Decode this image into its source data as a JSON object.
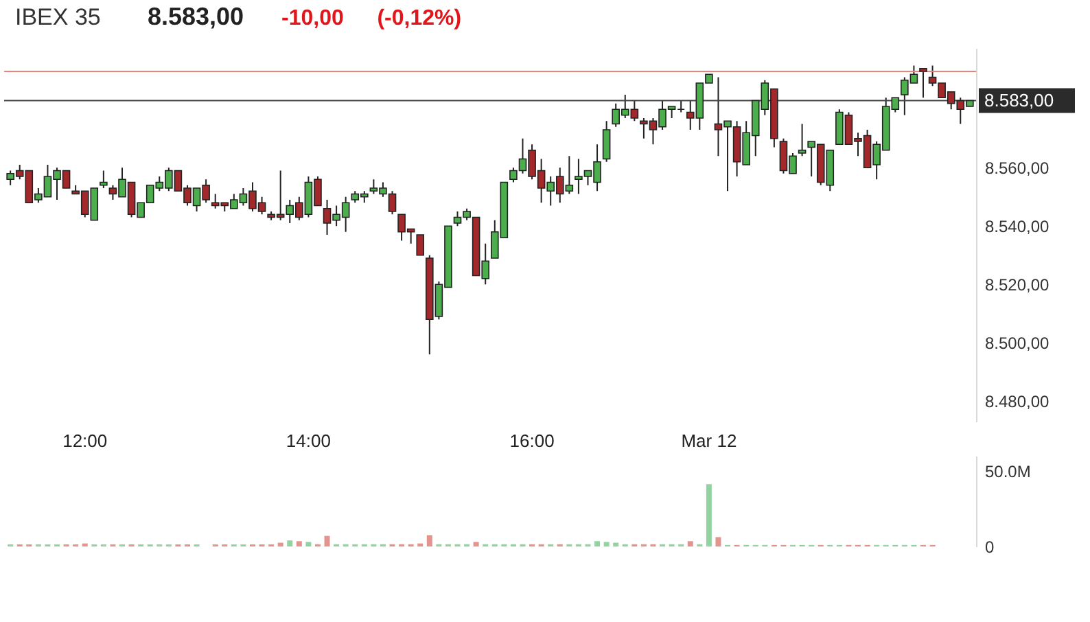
{
  "chart_data": [
    {
      "type": "candlestick",
      "title": "IBEX 35",
      "annotations": [
        "8.583,00",
        "-10,00",
        "(-0,12%)"
      ],
      "categories": [
        null,
        null,
        null,
        null,
        null,
        null,
        null,
        null,
        "12:00",
        null,
        null,
        null,
        null,
        null,
        null,
        null,
        null,
        null,
        null,
        null,
        null,
        null,
        null,
        null,
        null,
        null,
        null,
        null,
        null,
        null,
        null,
        null,
        "14:00",
        null,
        null,
        null,
        null,
        null,
        null,
        null,
        null,
        null,
        null,
        null,
        null,
        null,
        null,
        null,
        null,
        null,
        null,
        null,
        null,
        null,
        null,
        null,
        "16:00",
        null,
        null,
        null,
        null,
        null,
        null,
        null,
        null,
        null,
        null,
        null,
        null,
        null,
        null,
        null,
        null,
        null,
        null,
        "Mar 12",
        null,
        null,
        null,
        null,
        null,
        null,
        null,
        null,
        null,
        null,
        null,
        null,
        null,
        null,
        null,
        null,
        null,
        null,
        null,
        null,
        null,
        null,
        null,
        null,
        null,
        null,
        null,
        null
      ],
      "ohlc": [
        [
          8556,
          8559,
          8554,
          8558
        ],
        [
          8559,
          8561,
          8556,
          8557
        ],
        [
          8559,
          8559,
          8548,
          8548
        ],
        [
          8549,
          8553,
          8548,
          8551
        ],
        [
          8550,
          8561,
          8550,
          8557
        ],
        [
          8556,
          8560,
          8549,
          8559
        ],
        [
          8559,
          8559,
          8553,
          8553
        ],
        [
          8552,
          8554,
          8551,
          8551
        ],
        [
          8552,
          8552,
          8543,
          8544
        ],
        [
          8542,
          8553,
          8542,
          8553
        ],
        [
          8554,
          8559,
          8553,
          8555
        ],
        [
          8553,
          8554,
          8549,
          8551
        ],
        [
          8550,
          8560,
          8550,
          8556
        ],
        [
          8555,
          8555,
          8543,
          8544
        ],
        [
          8543,
          8548,
          8543,
          8548
        ],
        [
          8548,
          8554,
          8548,
          8554
        ],
        [
          8553,
          8557,
          8552,
          8555
        ],
        [
          8553,
          8560,
          8552,
          8559
        ],
        [
          8559,
          8559,
          8552,
          8552
        ],
        [
          8553,
          8554,
          8547,
          8548
        ],
        [
          8547,
          8553,
          8545,
          8553
        ],
        [
          8554,
          8556,
          8548,
          8549
        ],
        [
          8548,
          8551,
          8546,
          8547
        ],
        [
          8548,
          8548,
          8545,
          8547
        ],
        [
          8546,
          8551,
          8546,
          8549
        ],
        [
          8548,
          8553,
          8547,
          8551
        ],
        [
          8552,
          8555,
          8545,
          8546
        ],
        [
          8548,
          8550,
          8544,
          8545
        ],
        [
          8544,
          8545,
          8542,
          8543
        ],
        [
          8544,
          8559,
          8542,
          8543
        ],
        [
          8544,
          8549,
          8541,
          8547
        ],
        [
          8548,
          8550,
          8542,
          8543
        ],
        [
          8544,
          8557,
          8543,
          8555
        ],
        [
          8556,
          8557,
          8547,
          8547
        ],
        [
          8546,
          8549,
          8537,
          8541
        ],
        [
          8542,
          8547,
          8540,
          8544
        ],
        [
          8543,
          8550,
          8538,
          8548
        ],
        [
          8549,
          8552,
          8548,
          8551
        ],
        [
          8550,
          8552,
          8548,
          8551
        ],
        [
          8552,
          8556,
          8551,
          8553
        ],
        [
          8551,
          8555,
          8550,
          8553
        ],
        [
          8551,
          8552,
          8544,
          8545
        ],
        [
          8544,
          8544,
          8535,
          8538
        ],
        [
          8539,
          8539,
          8534,
          8538
        ],
        [
          8537,
          8537,
          8530,
          8530
        ],
        [
          8529,
          8530,
          8496,
          8508
        ],
        [
          8509,
          8521,
          8508,
          8520
        ],
        [
          8519,
          8540,
          8519,
          8540
        ],
        [
          8541,
          8545,
          8540,
          8543
        ],
        [
          8543,
          8546,
          8542,
          8545
        ],
        [
          8543,
          8543,
          8523,
          8523
        ],
        [
          8522,
          8534,
          8520,
          8528
        ],
        [
          8529,
          8542,
          8529,
          8538
        ],
        [
          8536,
          8555,
          8536,
          8555
        ],
        [
          8556,
          8560,
          8555,
          8559
        ],
        [
          8559,
          8570,
          8558,
          8563
        ],
        [
          8566,
          8568,
          8556,
          8557
        ],
        [
          8559,
          8563,
          8548,
          8553
        ],
        [
          8552,
          8557,
          8547,
          8555
        ],
        [
          8557,
          8560,
          8548,
          8551
        ],
        [
          8552,
          8564,
          8551,
          8554
        ],
        [
          8556,
          8563,
          8551,
          8557
        ],
        [
          8557,
          8559,
          8554,
          8559
        ],
        [
          8555,
          8568,
          8552,
          8562
        ],
        [
          8563,
          8576,
          8562,
          8573
        ],
        [
          8575,
          8582,
          8574,
          8580
        ],
        [
          8578,
          8585,
          8577,
          8580
        ],
        [
          8580,
          8583,
          8576,
          8577
        ],
        [
          8576,
          8577,
          8570,
          8575
        ],
        [
          8576,
          8577,
          8568,
          8573
        ],
        [
          8574,
          8583,
          8573,
          8580
        ],
        [
          8580,
          8581,
          8577,
          8581
        ],
        [
          8580,
          8583,
          8579,
          8580
        ],
        [
          8579,
          8583,
          8573,
          8577
        ],
        [
          8577,
          8589,
          8573,
          8589
        ],
        [
          8589,
          8592,
          8589,
          8592
        ],
        [
          8575,
          8591,
          8564,
          8573
        ],
        [
          8574,
          8576,
          8552,
          8576
        ],
        [
          8574,
          8576,
          8557,
          8562
        ],
        [
          8561,
          8576,
          8561,
          8572
        ],
        [
          8571,
          8583,
          8564,
          8583
        ],
        [
          8580,
          8590,
          8578,
          8589
        ],
        [
          8587,
          8587,
          8567,
          8570
        ],
        [
          8569,
          8570,
          8558,
          8559
        ],
        [
          8558,
          8565,
          8558,
          8564
        ],
        [
          8565,
          8575,
          8564,
          8566
        ],
        [
          8567,
          8569,
          8557,
          8569
        ],
        [
          8568,
          8568,
          8554,
          8555
        ],
        [
          8554,
          8566,
          8552,
          8566
        ],
        [
          8568,
          8580,
          8568,
          8579
        ],
        [
          8578,
          8579,
          8568,
          8568
        ],
        [
          8570,
          8572,
          8564,
          8569
        ],
        [
          8571,
          8573,
          8560,
          8560
        ],
        [
          8561,
          8569,
          8556,
          8568
        ],
        [
          8566,
          8584,
          8566,
          8581
        ],
        [
          8580,
          8584,
          8579,
          8584
        ],
        [
          8585,
          8591,
          8578,
          8590
        ],
        [
          8589,
          8595,
          8589,
          8592
        ],
        [
          8594,
          8594,
          8584,
          8593
        ],
        [
          8591,
          8595,
          8588,
          8589
        ],
        [
          8589,
          8589,
          8584,
          8584
        ],
        [
          8586,
          8586,
          8580,
          8582
        ],
        [
          8583,
          8584,
          8575,
          8580
        ],
        [
          8581,
          8583,
          8581,
          8583
        ]
      ],
      "ylim": [
        8473,
        8601
      ],
      "yticks": [
        {
          "value": 8480,
          "label": "8.480,00"
        },
        {
          "value": 8500,
          "label": "8.500,00"
        },
        {
          "value": 8520,
          "label": "8.520,00"
        },
        {
          "value": 8540,
          "label": "8.540,00"
        },
        {
          "value": 8560,
          "label": "8.560,00"
        }
      ],
      "ref_lines": [
        {
          "axis": "y",
          "value": 8593,
          "color": "#e8827c"
        },
        {
          "axis": "y",
          "value": 8583,
          "label": "8.583,00",
          "color": "#444444"
        }
      ]
    },
    {
      "type": "bar",
      "tick_labels": "y",
      "categories": [
        null,
        null,
        null,
        null,
        null,
        null,
        null,
        null,
        null,
        null,
        null,
        null,
        null,
        null,
        null,
        null,
        null,
        null,
        null,
        null,
        null,
        null,
        null,
        null,
        null,
        null,
        null,
        null,
        null,
        null,
        null,
        null,
        null,
        null,
        null,
        null,
        null,
        null,
        null,
        null,
        null,
        null,
        null,
        null,
        null,
        null,
        null,
        null,
        null,
        null,
        null,
        null,
        null,
        null,
        null,
        null,
        null,
        null,
        null,
        null,
        null,
        null,
        null,
        null,
        null,
        null,
        null,
        null,
        null,
        null,
        null,
        null,
        null,
        null,
        null,
        null,
        null,
        null,
        null,
        null,
        null,
        null,
        null,
        null,
        null,
        null,
        null,
        null,
        null,
        null,
        null,
        null,
        null,
        null,
        null,
        null,
        null,
        null,
        null,
        null,
        null,
        null,
        null,
        null
      ],
      "series": [
        {
          "color": "#92d3a2",
          "values": [
            1400000,
            null,
            null,
            1400000,
            1400000,
            1400000,
            null,
            null,
            null,
            1400000,
            1400000,
            null,
            1400000,
            null,
            1400000,
            1400000,
            1400000,
            1400000,
            null,
            null,
            1400000,
            null,
            null,
            null,
            1400000,
            1400000,
            null,
            null,
            null,
            null,
            4000000,
            null,
            3000000,
            null,
            null,
            1500000,
            1500000,
            1500000,
            1500000,
            1500000,
            1500000,
            null,
            null,
            null,
            null,
            null,
            1500000,
            1500000,
            1500000,
            1500000,
            null,
            1500000,
            1500000,
            1500000,
            1500000,
            1500000,
            null,
            null,
            1500000,
            null,
            1500000,
            1500000,
            1500000,
            3500000,
            3000000,
            2500000,
            1500000,
            null,
            null,
            null,
            1500000,
            1500000,
            1500000,
            null,
            1500000,
            41300000,
            null,
            1000000,
            null,
            1000000,
            1000000,
            1000000,
            null,
            null,
            1000000,
            1000000,
            1000000,
            null,
            1000000,
            1000000,
            null,
            null,
            null,
            1000000,
            1000000,
            1000000,
            1000000,
            1000000,
            null,
            null,
            null,
            null,
            null,
            null
          ]
        },
        {
          "color": "#e4948e",
          "values": [
            null,
            1400000,
            1400000,
            null,
            null,
            null,
            1400000,
            1400000,
            2000000,
            null,
            null,
            1400000,
            null,
            1400000,
            null,
            null,
            null,
            null,
            1400000,
            1400000,
            null,
            null,
            1400000,
            1400000,
            null,
            null,
            1400000,
            1400000,
            1400000,
            2500000,
            null,
            3500000,
            null,
            1500000,
            7000000,
            null,
            null,
            null,
            null,
            null,
            null,
            1500000,
            1500000,
            1500000,
            2000000,
            7500000,
            null,
            null,
            null,
            null,
            3000000,
            null,
            null,
            null,
            null,
            null,
            1500000,
            1500000,
            null,
            1500000,
            null,
            null,
            null,
            null,
            null,
            null,
            null,
            1500000,
            1500000,
            1500000,
            null,
            null,
            null,
            3500000,
            null,
            null,
            6200000,
            null,
            1000000,
            null,
            null,
            null,
            1000000,
            1000000,
            null,
            null,
            null,
            1000000,
            null,
            null,
            1000000,
            1000000,
            1000000,
            null,
            null,
            null,
            null,
            null,
            1000000,
            1000000,
            null,
            null,
            null,
            null
          ]
        }
      ],
      "ylim": [
        0,
        60000000
      ],
      "yticks": [
        0,
        {
          "value": 50000000,
          "label": "50.0M"
        }
      ]
    }
  ]
}
